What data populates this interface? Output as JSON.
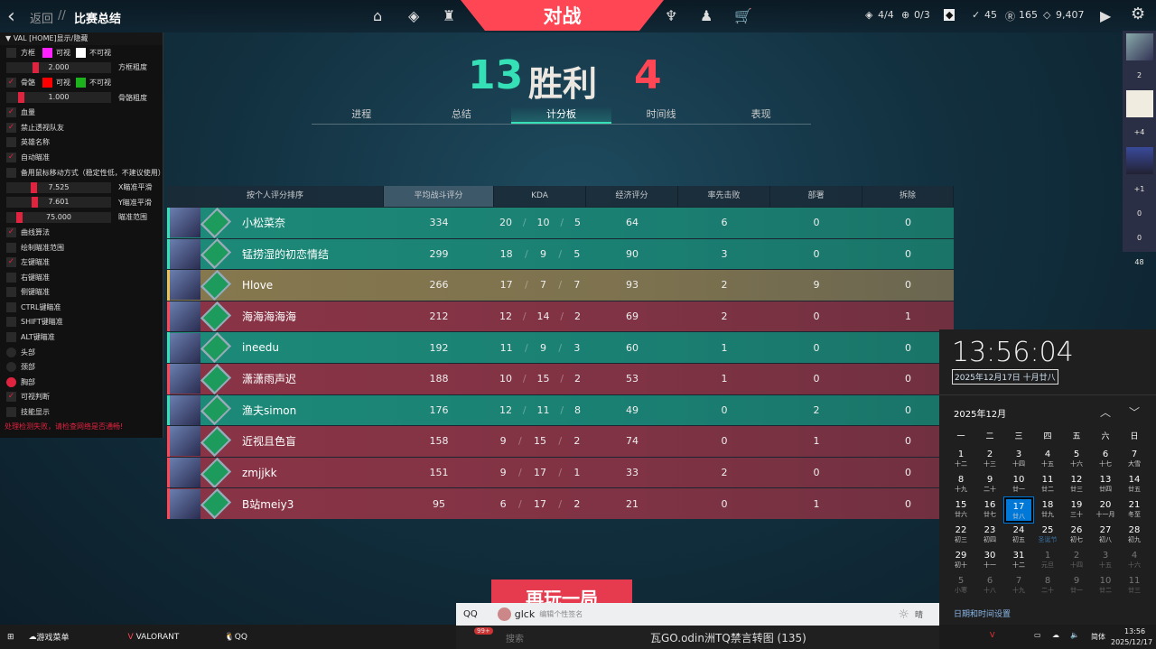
{
  "header": {
    "back": "返回",
    "sep": "//",
    "title": "比赛总结",
    "center": "对战",
    "stats": [
      {
        "icon": "agent-contract-icon",
        "value": "4/4"
      },
      {
        "icon": "plus-circle-icon",
        "value": "0/3"
      },
      {
        "icon": "valorant-points-icon",
        "value": "45"
      },
      {
        "icon": "radianite-icon",
        "value": "165"
      },
      {
        "icon": "kingdom-credits-icon",
        "value": "9,407"
      }
    ]
  },
  "match": {
    "team_score": "13",
    "result": "胜利",
    "enemy_score": "4",
    "tabs": [
      "进程",
      "总结",
      "计分板",
      "时间线",
      "表现"
    ],
    "active_tab": 2
  },
  "scoreboard": {
    "columns": [
      "按个人评分排序",
      "平均战斗评分",
      "KDA",
      "经济评分",
      "率先击败",
      "部署",
      "拆除"
    ],
    "rows": [
      {
        "team": "green",
        "name": "小松菜奈",
        "acs": "334",
        "k": "20",
        "d": "10",
        "a": "5",
        "econ": "64",
        "fb": "6",
        "plants": "0",
        "defuses": "0"
      },
      {
        "team": "green",
        "name": "锰捞湿的初恋情结",
        "acs": "299",
        "k": "18",
        "d": "9",
        "a": "5",
        "econ": "90",
        "fb": "3",
        "plants": "0",
        "defuses": "0"
      },
      {
        "team": "gold",
        "name": "Hlove",
        "acs": "266",
        "k": "17",
        "d": "7",
        "a": "7",
        "econ": "93",
        "fb": "2",
        "plants": "9",
        "defuses": "0"
      },
      {
        "team": "red",
        "name": "海海海海海",
        "acs": "212",
        "k": "12",
        "d": "14",
        "a": "2",
        "econ": "69",
        "fb": "2",
        "plants": "0",
        "defuses": "1"
      },
      {
        "team": "green",
        "name": "ineedu",
        "acs": "192",
        "k": "11",
        "d": "9",
        "a": "3",
        "econ": "60",
        "fb": "1",
        "plants": "0",
        "defuses": "0"
      },
      {
        "team": "red",
        "name": "潇潇雨声迟",
        "acs": "188",
        "k": "10",
        "d": "15",
        "a": "2",
        "econ": "53",
        "fb": "1",
        "plants": "0",
        "defuses": "0"
      },
      {
        "team": "green",
        "name": "渔夫simon",
        "acs": "176",
        "k": "12",
        "d": "11",
        "a": "8",
        "econ": "49",
        "fb": "0",
        "plants": "2",
        "defuses": "0"
      },
      {
        "team": "red",
        "name": "近视且色盲",
        "acs": "158",
        "k": "9",
        "d": "15",
        "a": "2",
        "econ": "74",
        "fb": "0",
        "plants": "1",
        "defuses": "0"
      },
      {
        "team": "red",
        "name": "zmjjkk",
        "acs": "151",
        "k": "9",
        "d": "17",
        "a": "1",
        "econ": "33",
        "fb": "2",
        "plants": "0",
        "defuses": "0"
      },
      {
        "team": "red",
        "name": "B站meiy3",
        "acs": "95",
        "k": "6",
        "d": "17",
        "a": "2",
        "econ": "21",
        "fb": "0",
        "plants": "1",
        "defuses": "0"
      }
    ],
    "team_colors": {
      "green": "#1d8a78",
      "red": "#8a3446",
      "gold": "#86784e"
    }
  },
  "replay": "再玩一局",
  "panel": {
    "title": "VAL [HOME]显示/隐藏",
    "items": [
      {
        "type": "check",
        "checked": false,
        "label": "方框",
        "colors": [
          "#ff22ff",
          "#ffffff"
        ],
        "color_labels": [
          "可视",
          "不可视"
        ]
      },
      {
        "type": "slider",
        "value": "2.000",
        "fraction": 0.27,
        "label": "方框粗度"
      },
      {
        "type": "check",
        "checked": true,
        "label": "骨骼",
        "colors": [
          "#ff0000",
          "#1db31d"
        ],
        "color_labels": [
          "可视",
          "不可视"
        ]
      },
      {
        "type": "slider",
        "value": "1.000",
        "fraction": 0.12,
        "label": "骨骼粗度"
      },
      {
        "type": "check",
        "checked": true,
        "label": "血量"
      },
      {
        "type": "check",
        "checked": true,
        "label": "禁止透视队友"
      },
      {
        "type": "check",
        "checked": false,
        "label": "英雄名称"
      },
      {
        "type": "check",
        "checked": true,
        "label": "自动瞄准"
      },
      {
        "type": "check",
        "checked": false,
        "label": "备用鼠标移动方式（稳定性低，不建议使用）"
      },
      {
        "type": "slider",
        "value": "7.525",
        "fraction": 0.25,
        "label": "X瞄准平滑"
      },
      {
        "type": "slider",
        "value": "7.601",
        "fraction": 0.26,
        "label": "Y瞄准平滑"
      },
      {
        "type": "slider",
        "value": "75.000",
        "fraction": 0.1,
        "label": "瞄准范围"
      },
      {
        "type": "check",
        "checked": true,
        "label": "曲线算法"
      },
      {
        "type": "check",
        "checked": false,
        "label": "绘制瞄准范围"
      },
      {
        "type": "check",
        "checked": true,
        "label": "左键瞄准"
      },
      {
        "type": "check",
        "checked": false,
        "label": "右键瞄准"
      },
      {
        "type": "check",
        "checked": false,
        "label": "侧键瞄准"
      },
      {
        "type": "check",
        "checked": false,
        "label": "CTRL键瞄准"
      },
      {
        "type": "check",
        "checked": false,
        "label": "SHIFT键瞄准"
      },
      {
        "type": "check",
        "checked": false,
        "label": "ALT键瞄准"
      },
      {
        "type": "radio",
        "checked": false,
        "label": "头部"
      },
      {
        "type": "radio",
        "checked": false,
        "label": "颈部"
      },
      {
        "type": "radio",
        "checked": true,
        "label": "胸部"
      },
      {
        "type": "check",
        "checked": true,
        "label": "可视判断"
      },
      {
        "type": "check",
        "checked": false,
        "label": "技能显示"
      }
    ],
    "warning": "处理检测失败，请检查网络是否通畅!"
  },
  "side": {
    "values": [
      "2",
      "+4",
      "+1",
      "0",
      "0",
      "48"
    ]
  },
  "qq": {
    "label": "QQ",
    "user": "glck",
    "signature": "编辑个性签名",
    "weather": "晴",
    "chat_title": "瓦GO.odin洲TQ禁言转图 (135)",
    "search": "搜索",
    "badge": "99+"
  },
  "calendar": {
    "time": "13:56:04",
    "date": "2025年12月17日 十月廿八",
    "month": "2025年12月",
    "weekdays": [
      "一",
      "二",
      "三",
      "四",
      "五",
      "六",
      "日"
    ],
    "days": [
      [
        "1",
        "十二"
      ],
      [
        "2",
        "十三"
      ],
      [
        "3",
        "十四"
      ],
      [
        "4",
        "十五"
      ],
      [
        "5",
        "十六"
      ],
      [
        "6",
        "十七"
      ],
      [
        "7",
        "大雪"
      ],
      [
        "8",
        "十九"
      ],
      [
        "9",
        "二十"
      ],
      [
        "10",
        "廿一"
      ],
      [
        "11",
        "廿二"
      ],
      [
        "12",
        "廿三"
      ],
      [
        "13",
        "廿四"
      ],
      [
        "14",
        "廿五"
      ],
      [
        "15",
        "廿六"
      ],
      [
        "16",
        "廿七"
      ],
      [
        "17",
        "廿八"
      ],
      [
        "18",
        "廿九"
      ],
      [
        "19",
        "三十"
      ],
      [
        "20",
        "十一月"
      ],
      [
        "21",
        "冬至"
      ],
      [
        "22",
        "初三"
      ],
      [
        "23",
        "初四"
      ],
      [
        "24",
        "初五"
      ],
      [
        "25",
        "圣诞节"
      ],
      [
        "26",
        "初七"
      ],
      [
        "27",
        "初八"
      ],
      [
        "28",
        "初九"
      ],
      [
        "29",
        "初十"
      ],
      [
        "30",
        "十一"
      ],
      [
        "31",
        "十二"
      ],
      [
        "1",
        "元旦"
      ],
      [
        "2",
        "十四"
      ],
      [
        "3",
        "十五"
      ],
      [
        "4",
        "十六"
      ],
      [
        "5",
        "小寒"
      ],
      [
        "6",
        "十八"
      ],
      [
        "7",
        "十九"
      ],
      [
        "8",
        "二十"
      ],
      [
        "9",
        "廿一"
      ],
      [
        "10",
        "廿二"
      ],
      [
        "11",
        "廿三"
      ]
    ],
    "today_index": 16,
    "current_month_days": 31,
    "settings": "日期和时间设置"
  },
  "taskbar": {
    "items": [
      "游戏菜单",
      "VALORANT",
      "QQ"
    ],
    "ime": "简体",
    "time": "13:56",
    "date": "2025/12/17"
  }
}
